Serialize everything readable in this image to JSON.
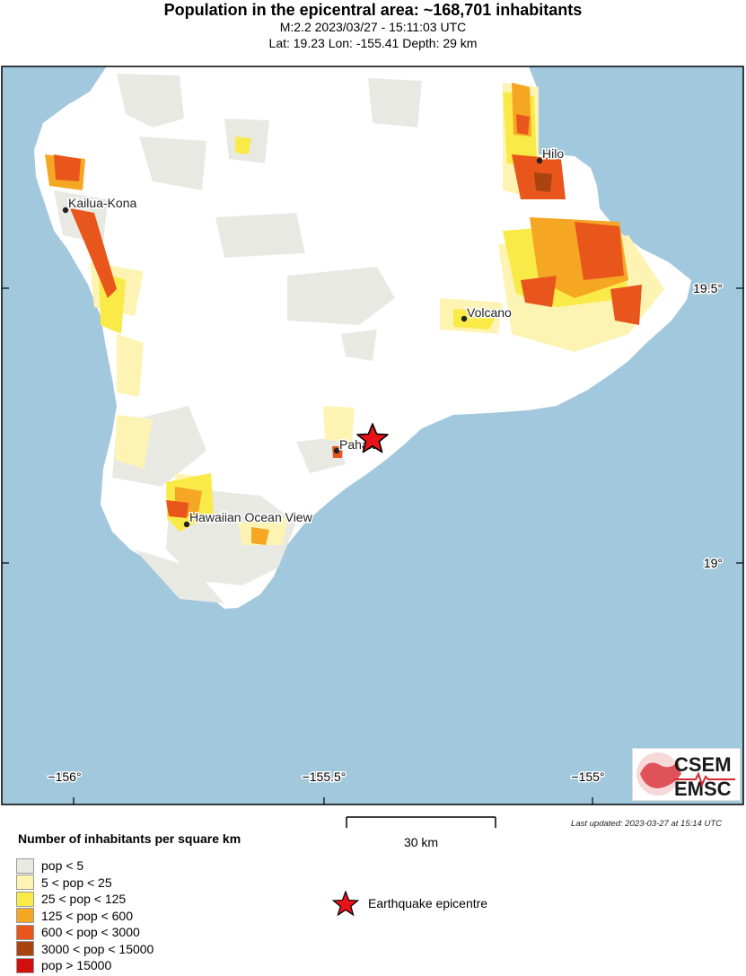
{
  "header": {
    "title": "Population in the epicentral area: ~168,701 inhabitants",
    "magnitude_line": "M:2.2 2023/03/27 - 15:11:03 UTC",
    "location_line": "Lat: 19.23 Lon: -155.41 Depth: 29 km"
  },
  "map": {
    "ocean_color": "#a2c8dd",
    "land_color": "#ffffff",
    "cities": [
      {
        "name": "Kailua-Kona"
      },
      {
        "name": "Hilo"
      },
      {
        "name": "Volcano"
      },
      {
        "name": "Pahala"
      },
      {
        "name": "Hawaiian Ocean View"
      }
    ],
    "lon_ticks": [
      "−156°",
      "−155.5°",
      "−155°"
    ],
    "lat_ticks": [
      "19.5°",
      "19°"
    ]
  },
  "epicentre": {
    "lat": 19.23,
    "lon": -155.41,
    "color": "#e8141a"
  },
  "scale_bar": {
    "label": "30 km"
  },
  "updated": "Last updated: 2023-03-27 at 15:14 UTC",
  "logo": {
    "top": "CSEM",
    "bottom": "EMSC",
    "accent": "#d7262e"
  },
  "legend": {
    "title": "Number of inhabitants per square km",
    "items": [
      {
        "label": "pop < 5",
        "color": "#e9e9e4"
      },
      {
        "label": "5 < pop < 25",
        "color": "#fdf4b3"
      },
      {
        "label": "25 < pop < 125",
        "color": "#f9ea47"
      },
      {
        "label": "125 < pop < 600",
        "color": "#f5a623"
      },
      {
        "label": "600 < pop < 3000",
        "color": "#e8561c"
      },
      {
        "label": "3000 < pop < 15000",
        "color": "#a9430f"
      },
      {
        "label": "pop > 15000",
        "color": "#d20f0f"
      }
    ],
    "epicentre_label": "Earthquake epicentre"
  }
}
